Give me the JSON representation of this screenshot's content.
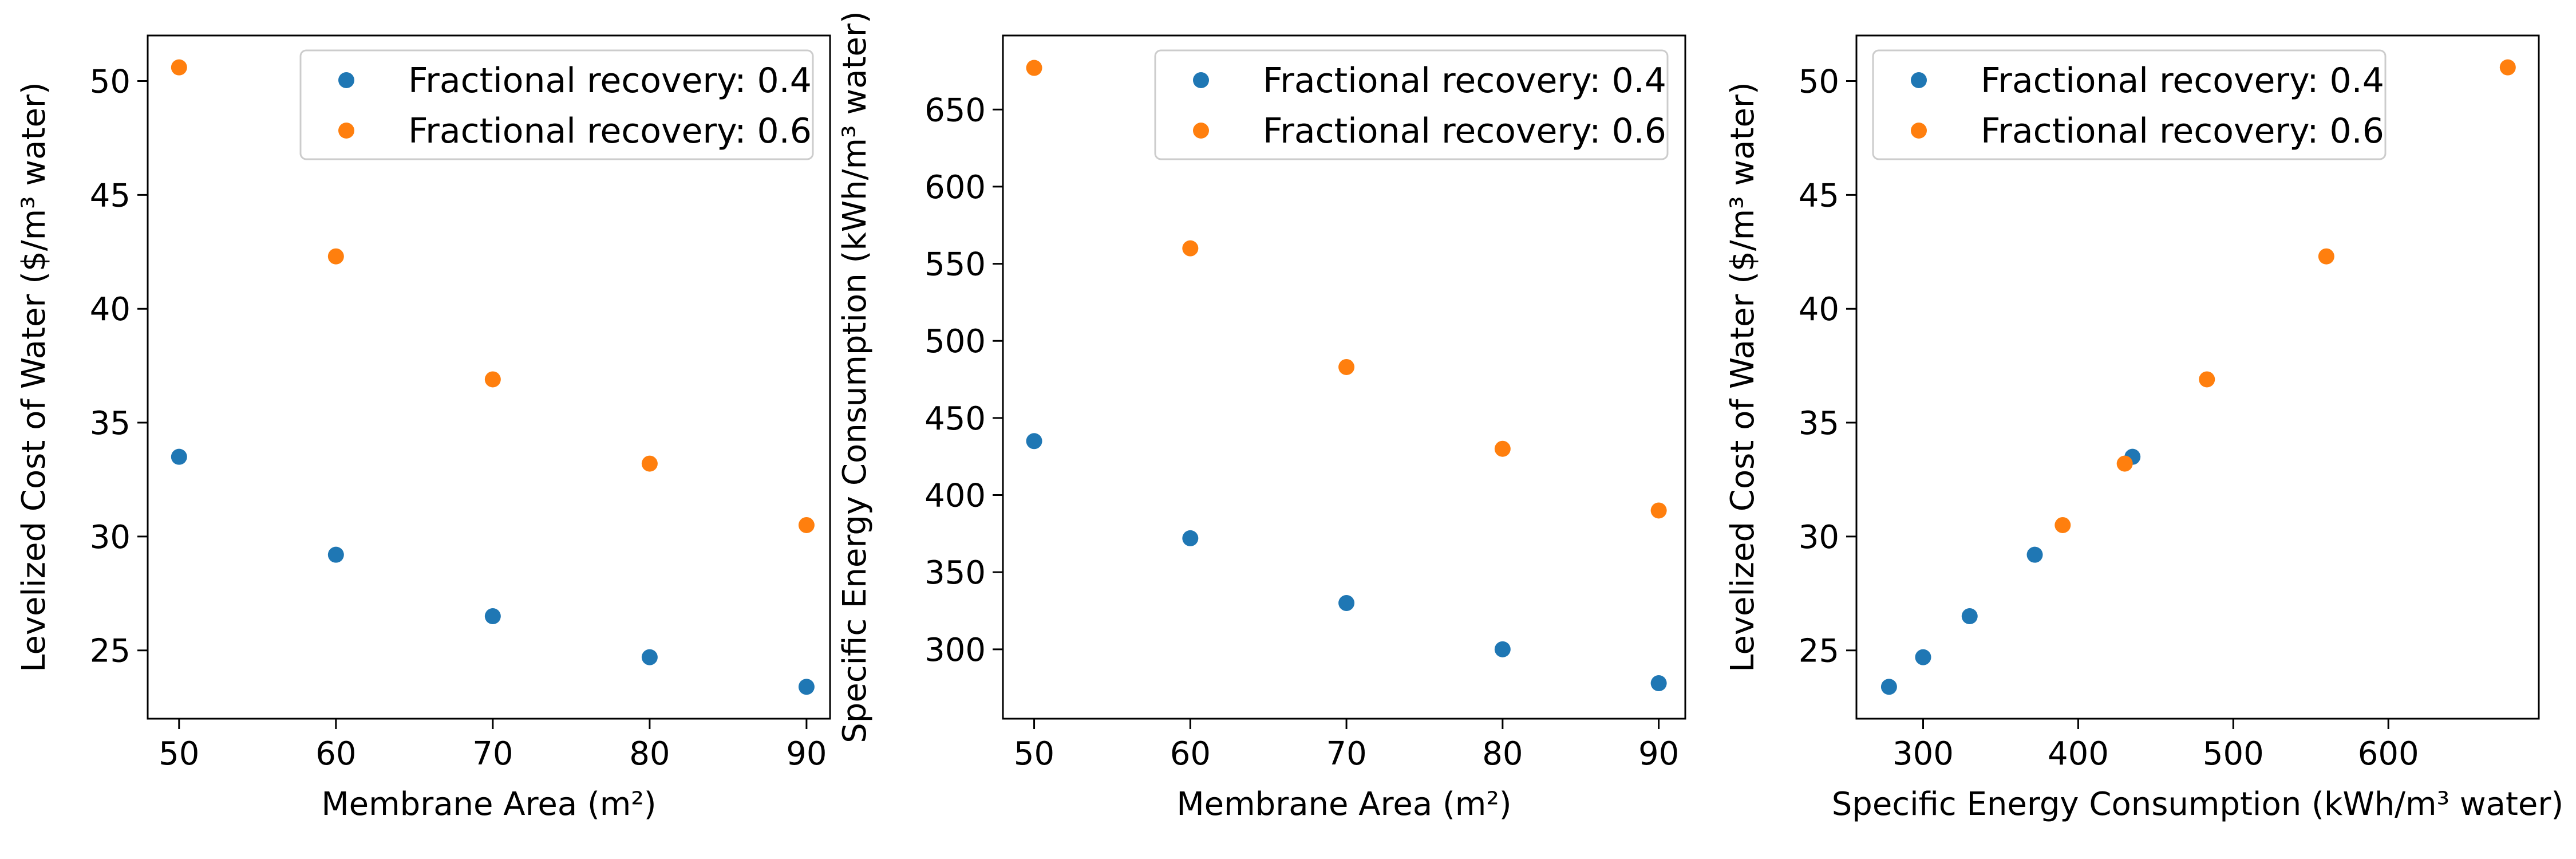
{
  "chart_data": [
    {
      "type": "scatter",
      "title": "",
      "xlabel": "Membrane Area (m²)",
      "ylabel": "Levelized Cost of Water ($/m³ water)",
      "xlim": [
        48,
        91.5
      ],
      "ylim": [
        22,
        52
      ],
      "xticks": [
        "50",
        "60",
        "70",
        "80",
        "90"
      ],
      "yticks": [
        "25",
        "30",
        "35",
        "40",
        "45",
        "50"
      ],
      "legend_position": "top-right",
      "series": [
        {
          "name": "Fractional recovery: 0.4",
          "color": "#1f77b4",
          "x": [
            50,
            60,
            70,
            80,
            90
          ],
          "y": [
            33.5,
            29.2,
            26.5,
            24.7,
            23.4
          ]
        },
        {
          "name": "Fractional recovery: 0.6",
          "color": "#ff7f0e",
          "x": [
            50,
            60,
            70,
            80,
            90
          ],
          "y": [
            50.6,
            42.3,
            36.9,
            33.2,
            30.5
          ]
        }
      ]
    },
    {
      "type": "scatter",
      "title": "",
      "xlabel": "Membrane Area (m²)",
      "ylabel": "Specific Energy Consumption (kWh/m³ water)",
      "xlim": [
        48,
        91.7
      ],
      "ylim": [
        255,
        698
      ],
      "xticks": [
        "50",
        "60",
        "70",
        "80",
        "90"
      ],
      "yticks": [
        "300",
        "350",
        "400",
        "450",
        "500",
        "550",
        "600",
        "650"
      ],
      "legend_position": "top-right",
      "series": [
        {
          "name": "Fractional recovery: 0.4",
          "color": "#1f77b4",
          "x": [
            50,
            60,
            70,
            80,
            90
          ],
          "y": [
            435,
            372,
            330,
            300,
            278
          ]
        },
        {
          "name": "Fractional recovery: 0.6",
          "color": "#ff7f0e",
          "x": [
            50,
            60,
            70,
            80,
            90
          ],
          "y": [
            677,
            560,
            483,
            430,
            390
          ]
        }
      ]
    },
    {
      "type": "scatter",
      "title": "",
      "xlabel": "Specific Energy Consumption (kWh/m³ water)",
      "ylabel": "Levelized Cost of Water ($/m³ water)",
      "xlim": [
        257,
        697
      ],
      "ylim": [
        22,
        52
      ],
      "xticks": [
        "300",
        "400",
        "500",
        "600"
      ],
      "yticks": [
        "25",
        "30",
        "35",
        "40",
        "45",
        "50"
      ],
      "legend_position": "top-left",
      "series": [
        {
          "name": "Fractional recovery: 0.4",
          "color": "#1f77b4",
          "x": [
            435,
            372,
            330,
            300,
            278
          ],
          "y": [
            33.5,
            29.2,
            26.5,
            24.7,
            23.4
          ]
        },
        {
          "name": "Fractional recovery: 0.6",
          "color": "#ff7f0e",
          "x": [
            677,
            560,
            483,
            430,
            390
          ],
          "y": [
            50.6,
            42.3,
            36.9,
            33.2,
            30.5
          ]
        }
      ]
    }
  ]
}
